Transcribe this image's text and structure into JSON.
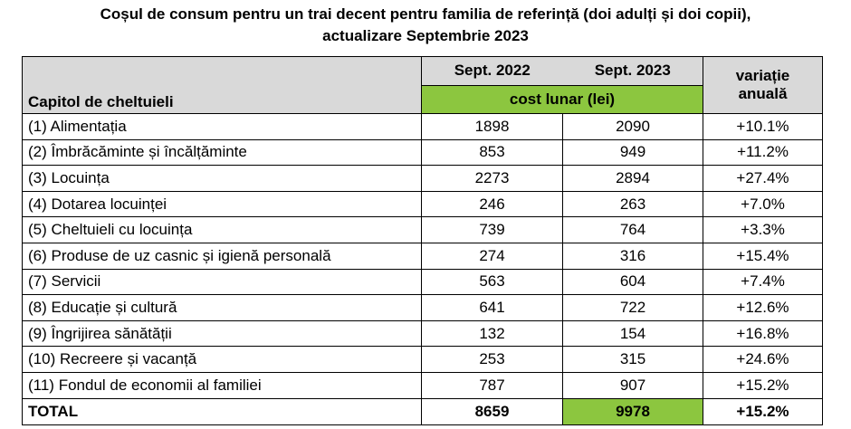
{
  "title": {
    "line1": "Coșul de consum pentru un trai decent pentru familia de referință (doi adulți și doi copii),",
    "line2": "actualizare Septembrie 2023"
  },
  "header": {
    "label": "Capitol de cheltuieli",
    "year1": "Sept. 2022",
    "year2": "Sept. 2023",
    "cost": "cost lunar (lei)",
    "variation_line1": "variație",
    "variation_line2": "anuală"
  },
  "rows": [
    {
      "label": "(1) Alimentația",
      "v2022": "1898",
      "v2023": "2090",
      "var": "+10.1%"
    },
    {
      "label": "(2) Îmbrăcăminte și încălțăminte",
      "v2022": "853",
      "v2023": "949",
      "var": "+11.2%"
    },
    {
      "label": "(3) Locuința",
      "v2022": "2273",
      "v2023": "2894",
      "var": "+27.4%"
    },
    {
      "label": "(4) Dotarea locuinței",
      "v2022": "246",
      "v2023": "263",
      "var": "+7.0%"
    },
    {
      "label": "(5) Cheltuieli cu locuința",
      "v2022": "739",
      "v2023": "764",
      "var": "+3.3%"
    },
    {
      "label": "(6) Produse de uz casnic și igienă personală",
      "v2022": "274",
      "v2023": "316",
      "var": "+15.4%"
    },
    {
      "label": "(7) Servicii",
      "v2022": "563",
      "v2023": "604",
      "var": "+7.4%"
    },
    {
      "label": "(8) Educație și cultură",
      "v2022": "641",
      "v2023": "722",
      "var": "+12.6%"
    },
    {
      "label": "(9) Îngrijirea sănătății",
      "v2022": "132",
      "v2023": "154",
      "var": "+16.8%"
    },
    {
      "label": "(10) Recreere și vacanță",
      "v2022": "253",
      "v2023": "315",
      "var": "+24.6%"
    },
    {
      "label": "(11) Fondul de economii al familiei",
      "v2022": "787",
      "v2023": "907",
      "var": "+15.2%"
    }
  ],
  "total": {
    "label": "TOTAL",
    "v2022": "8659",
    "v2023": "9978",
    "var": "+15.2%"
  },
  "colors": {
    "header_gray": "#d9d9d9",
    "accent_green": "#8cc63f"
  }
}
